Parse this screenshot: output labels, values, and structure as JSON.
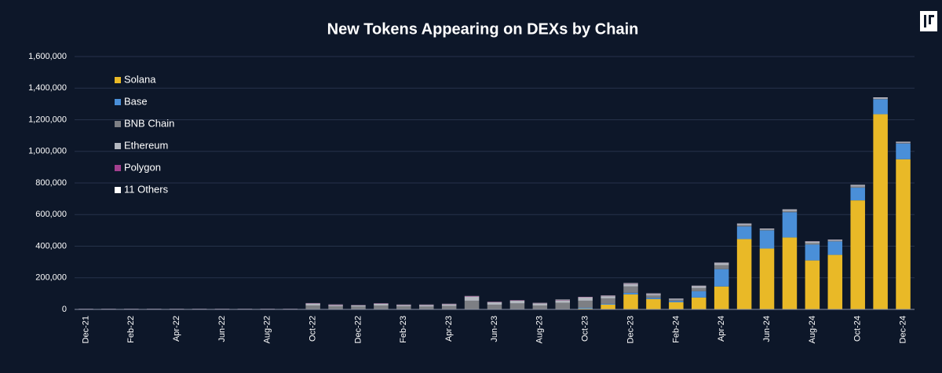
{
  "chart_data": {
    "type": "stacked_bar",
    "title": "New Tokens Appearing on DEXs by Chain",
    "categories": [
      "Dec-21",
      null,
      "Feb-22",
      null,
      "Apr-22",
      null,
      "Jun-22",
      null,
      "Aug-22",
      null,
      "Oct-22",
      null,
      "Dec-22",
      null,
      "Feb-23",
      null,
      "Apr-23",
      null,
      "Jun-23",
      null,
      "Aug-23",
      null,
      "Oct-23",
      null,
      "Dec-23",
      null,
      "Feb-24",
      null,
      "Apr-24",
      null,
      "Jun-24",
      null,
      "Aug-24",
      null,
      "Oct-24",
      null,
      "Dec-24"
    ],
    "series": [
      {
        "name": "Solana",
        "color": "#e9b927",
        "values": [
          0,
          0,
          0,
          0,
          0,
          0,
          0,
          0,
          0,
          0,
          0,
          0,
          0,
          0,
          0,
          0,
          0,
          0,
          0,
          0,
          0,
          0,
          5000,
          30000,
          95000,
          65000,
          45000,
          75000,
          145000,
          445000,
          385000,
          455000,
          310000,
          345000,
          690000,
          1235000,
          950000
        ]
      },
      {
        "name": "Base",
        "color": "#4a8fd8",
        "values": [
          0,
          0,
          0,
          0,
          0,
          0,
          0,
          0,
          0,
          0,
          0,
          0,
          0,
          0,
          0,
          0,
          0,
          0,
          0,
          0,
          0,
          2000,
          5000,
          5000,
          10000,
          8000,
          8000,
          40000,
          110000,
          80000,
          115000,
          160000,
          100000,
          85000,
          80000,
          95000,
          100000
        ]
      },
      {
        "name": "BNB Chain",
        "color": "#7d7f84",
        "values": [
          1000,
          1000,
          1000,
          1000,
          1000,
          1000,
          1000,
          1000,
          1000,
          1000,
          25000,
          20000,
          18000,
          25000,
          20000,
          18000,
          22000,
          55000,
          30000,
          38000,
          25000,
          40000,
          45000,
          35000,
          40000,
          15000,
          8000,
          20000,
          25000,
          8000,
          5000,
          8000,
          10000,
          5000,
          8000,
          3000,
          3000
        ]
      },
      {
        "name": "Ethereum",
        "color": "#b4b8c0",
        "values": [
          2000,
          2000,
          2000,
          2000,
          2000,
          2000,
          2000,
          2000,
          2000,
          2000,
          12000,
          8000,
          7000,
          11000,
          8000,
          10000,
          11000,
          25000,
          15000,
          17000,
          14000,
          16000,
          20000,
          14000,
          16000,
          10000,
          6000,
          12000,
          13000,
          6000,
          4000,
          6000,
          8000,
          4000,
          6000,
          5000,
          5000
        ]
      },
      {
        "name": "Polygon",
        "color": "#a3408f",
        "values": [
          500,
          500,
          500,
          500,
          500,
          500,
          500,
          500,
          500,
          500,
          2000,
          2000,
          1500,
          2000,
          1500,
          1500,
          1500,
          3000,
          2000,
          2000,
          1500,
          2000,
          2000,
          2000,
          2000,
          1000,
          500,
          1000,
          1000,
          1000,
          500,
          500,
          1000,
          500,
          500,
          500,
          500
        ]
      },
      {
        "name": "11 Others",
        "color": "#ffffff",
        "values": [
          500,
          500,
          500,
          500,
          500,
          500,
          500,
          500,
          500,
          500,
          1000,
          1000,
          1000,
          1000,
          1000,
          1000,
          1000,
          2000,
          1000,
          1000,
          1000,
          2000,
          2000,
          2000,
          3000,
          2000,
          1000,
          2000,
          2000,
          3000,
          2000,
          3000,
          2000,
          2000,
          3000,
          3000,
          2000
        ]
      }
    ],
    "ylim": [
      0,
      1600000
    ],
    "yticks": [
      0,
      {
        "value": 200000,
        "label": "200,000"
      },
      {
        "value": 400000,
        "label": "400,000"
      },
      {
        "value": 600000,
        "label": "600,000"
      },
      {
        "value": 800000,
        "label": "800,000"
      },
      {
        "value": 1000000,
        "label": "1,000,000"
      },
      {
        "value": 1200000,
        "label": "1,200,000"
      },
      {
        "value": 1400000,
        "label": "1,400,000"
      },
      {
        "value": 1600000,
        "label": "1,600,000"
      }
    ],
    "grid": true,
    "legend": "upper-left"
  }
}
